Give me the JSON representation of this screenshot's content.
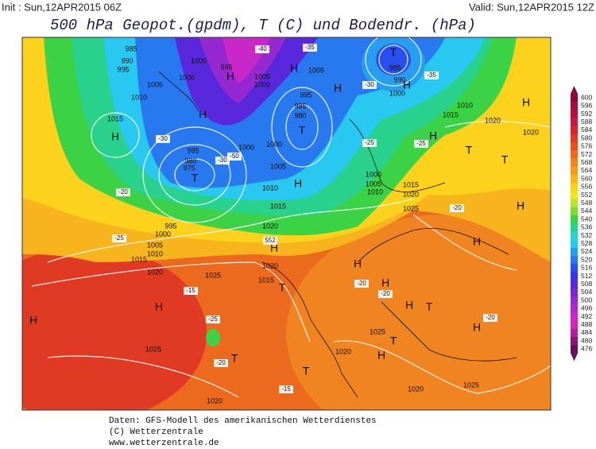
{
  "header": {
    "init": "Init : Sun,12APR2015 06Z",
    "valid": "Valid: Sun,12APR2015 12Z",
    "title": "500 hPa Geopot.(gpdm), T (C) und Bodendr. (hPa)"
  },
  "scale": {
    "ticks": [
      600,
      596,
      592,
      588,
      584,
      580,
      576,
      572,
      568,
      564,
      560,
      556,
      552,
      548,
      544,
      540,
      536,
      532,
      528,
      524,
      520,
      516,
      512,
      508,
      504,
      500,
      496,
      492,
      488,
      484,
      480,
      476
    ],
    "colors": [
      "#8b0a3a",
      "#a0103c",
      "#b4143c",
      "#c8193c",
      "#d7262f",
      "#e03a24",
      "#e6501e",
      "#ec6a1e",
      "#f08420",
      "#f49c1e",
      "#f8b41c",
      "#fcd21c",
      "#f0e61e",
      "#b4e632",
      "#78dc3c",
      "#3cd246",
      "#28d28c",
      "#28d2c8",
      "#28c8f0",
      "#289ef0",
      "#2878f0",
      "#2850f0",
      "#3c32e6",
      "#5a28dc",
      "#7828d2",
      "#9628d2",
      "#b428d2",
      "#c828c8",
      "#d228b4",
      "#b41e96",
      "#8c1478",
      "#64105a"
    ]
  },
  "map_labels": [
    "985",
    "990",
    "995",
    "1000",
    "995",
    "1000",
    "1005",
    "1010",
    "1015",
    "H",
    "H",
    "H",
    "1005",
    "1000",
    "H",
    "1005",
    "T",
    "985",
    "990",
    "1000",
    "H",
    "995",
    "985",
    "980",
    "T",
    "985",
    "980",
    "975",
    "T",
    "1000",
    "1000",
    "1005",
    "1010",
    "1015",
    "1020",
    "H",
    "995",
    "1000",
    "1005",
    "1010",
    "1015",
    "1020",
    "1025",
    "1020",
    "1015",
    "T",
    "H",
    "H",
    "T",
    "1025",
    "1020",
    "H",
    "H",
    "H",
    "T",
    "H",
    "H",
    "H",
    "T",
    "1020",
    "1020",
    "1025",
    "1025",
    "1020",
    "1025",
    "H",
    "H",
    "T",
    "1010",
    "1015",
    "H",
    "T",
    "1000",
    "1005",
    "1010",
    "1015",
    "1020",
    "H",
    "H",
    "T",
    "1020"
  ],
  "temp_labels": [
    "-40",
    "-35",
    "-30",
    "-50",
    "-30",
    "-20",
    "-25",
    "-15",
    "-20",
    "-20",
    "-25",
    "-35",
    "-30",
    "-25",
    "-20",
    "-20",
    "-15",
    "-25",
    "-20",
    "552"
  ],
  "footer": [
    "Daten: GFS-Modell des amerikanischen Wetterdienstes",
    "(C) Wetterzentrale",
    "www.wetterzentrale.de"
  ]
}
